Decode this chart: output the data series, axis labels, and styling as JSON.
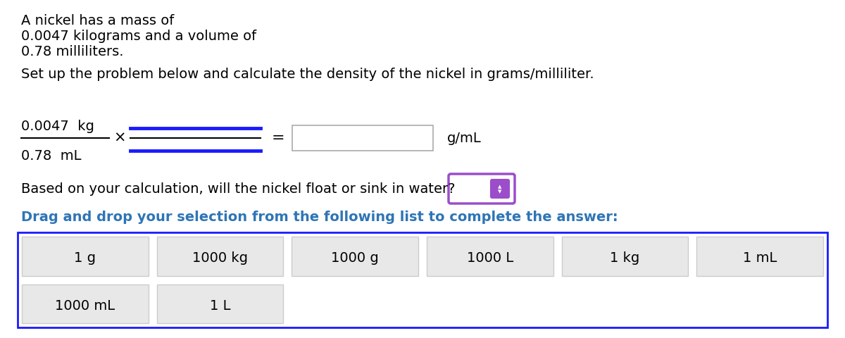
{
  "title_lines": [
    "A nickel has a mass of",
    "0.0047 kilograms and a volume of",
    "0.78 milliliters."
  ],
  "instruction": "Set up the problem below and calculate the density of the nickel in grams/milliliter.",
  "fraction_numerator": "0.0047  kg",
  "fraction_denominator": "0.78  mL",
  "fraction_line_color": "#000000",
  "conversion_top_color": "#1a1aff",
  "conversion_mid_color": "#000000",
  "conversion_bot_color": "#1a1aff",
  "result_unit": "g/mL",
  "float_sink_question": "Based on your calculation, will the nickel float or sink in water?",
  "drag_drop_instruction": "Drag and drop your selection from the following list to complete the answer:",
  "drag_drop_color": "#2e75b6",
  "items_row1": [
    "1 g",
    "1000 kg",
    "1000 g",
    "1000 L",
    "1 kg",
    "1 mL"
  ],
  "items_row2": [
    "1000 mL",
    "1 L"
  ],
  "box_border_color": "#1a1aff",
  "item_box_color": "#e8e8e8",
  "bg_color": "#ffffff",
  "text_color": "#000000",
  "font_size_main": 14,
  "dropdown_border_color": "#9b4dca"
}
